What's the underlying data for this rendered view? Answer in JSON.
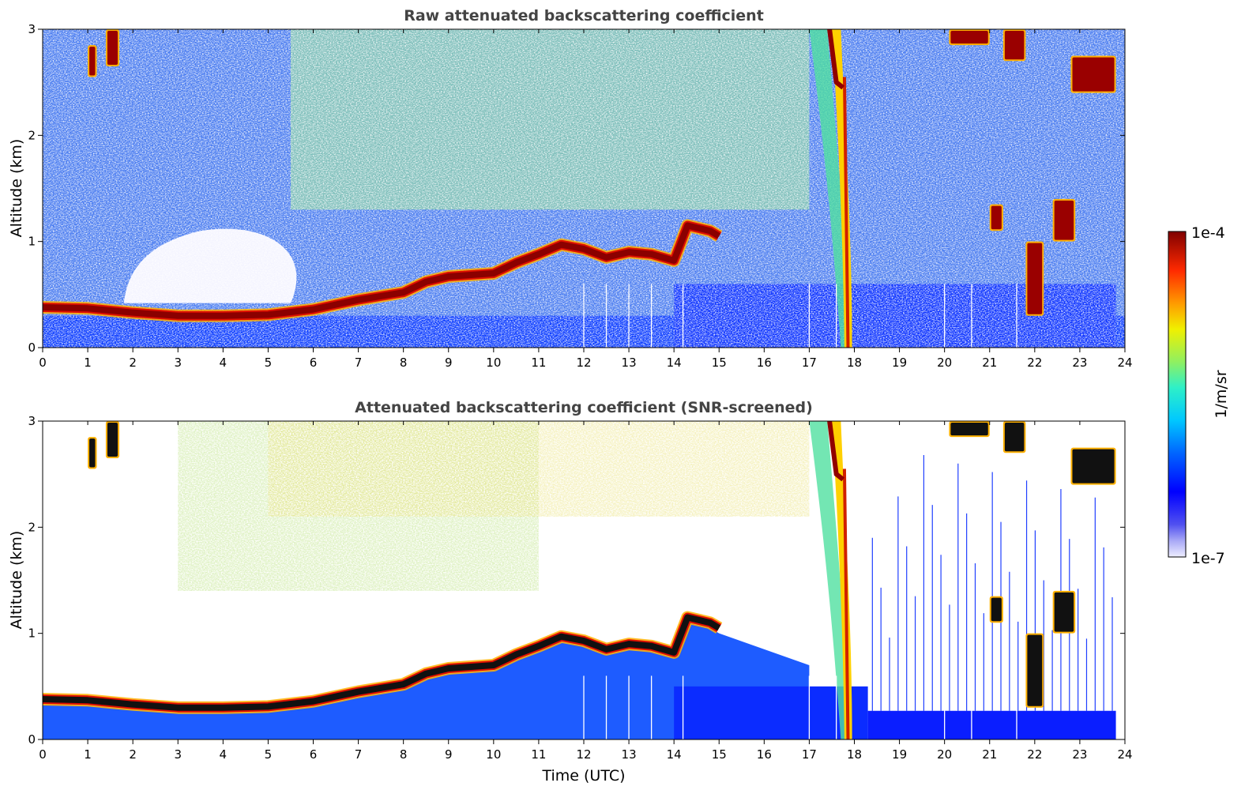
{
  "colorbar": {
    "label": "1/m/sr",
    "max_label": "1e-4",
    "min_label": "1e-7",
    "range": [
      1e-07,
      0.0001
    ],
    "scale": "log",
    "colormap": "jet-like (white/lavender at low end, blue, cyan, green, yellow, orange, red, dark red at high end)"
  },
  "chart_data": [
    {
      "type": "heatmap",
      "title": "Raw attenuated backscattering coefficient",
      "xlabel": "",
      "ylabel": "Altitude (km)",
      "xlim": [
        0,
        24
      ],
      "ylim": [
        0,
        3
      ],
      "xticks": [
        "0",
        "1",
        "2",
        "3",
        "4",
        "5",
        "6",
        "7",
        "8",
        "9",
        "10",
        "11",
        "12",
        "13",
        "14",
        "15",
        "16",
        "17",
        "18",
        "19",
        "20",
        "21",
        "22",
        "23",
        "24"
      ],
      "yticks": [
        "0",
        "1",
        "2",
        "3"
      ],
      "boundary_layer_top_km": [
        [
          0,
          0.38
        ],
        [
          1,
          0.37
        ],
        [
          2,
          0.33
        ],
        [
          3,
          0.3
        ],
        [
          4,
          0.3
        ],
        [
          5,
          0.31
        ],
        [
          6,
          0.36
        ],
        [
          7,
          0.45
        ],
        [
          8,
          0.52
        ],
        [
          8.5,
          0.62
        ],
        [
          9,
          0.67
        ],
        [
          10,
          0.7
        ],
        [
          10.5,
          0.8
        ],
        [
          11,
          0.88
        ],
        [
          11.5,
          0.97
        ],
        [
          12,
          0.93
        ],
        [
          12.5,
          0.85
        ],
        [
          13,
          0.9
        ],
        [
          13.5,
          0.88
        ],
        [
          14,
          0.82
        ],
        [
          14.3,
          1.15
        ],
        [
          14.8,
          1.1
        ],
        [
          15,
          1.05
        ]
      ],
      "cloud_features": [
        {
          "x_start": 17.5,
          "x_end": 18.0,
          "y_bottom": 0.0,
          "y_top": 3.0,
          "note": "precipitation shaft"
        },
        {
          "x_start": 21.8,
          "x_end": 22.2,
          "y_bottom": 0.3,
          "y_top": 1.0
        },
        {
          "x_start": 21.0,
          "x_end": 21.3,
          "y_bottom": 1.1,
          "y_top": 1.35
        },
        {
          "x_start": 22.4,
          "x_end": 22.9,
          "y_bottom": 1.0,
          "y_top": 1.4
        },
        {
          "x_start": 22.8,
          "x_end": 23.8,
          "y_bottom": 2.4,
          "y_top": 2.75
        },
        {
          "x_start": 20.1,
          "x_end": 21.0,
          "y_bottom": 2.85,
          "y_top": 3.0
        },
        {
          "x_start": 21.3,
          "x_end": 21.8,
          "y_bottom": 2.7,
          "y_top": 3.0
        },
        {
          "x_start": 1.0,
          "x_end": 1.2,
          "y_bottom": 2.55,
          "y_top": 2.85
        },
        {
          "x_start": 1.4,
          "x_end": 1.7,
          "y_bottom": 2.65,
          "y_top": 3.0
        }
      ]
    },
    {
      "type": "heatmap",
      "title": "Attenuated backscattering coefficient (SNR-screened)",
      "xlabel": "Time (UTC)",
      "ylabel": "Altitude (km)",
      "xlim": [
        0,
        24
      ],
      "ylim": [
        0,
        3
      ],
      "xticks": [
        "0",
        "1",
        "2",
        "3",
        "4",
        "5",
        "6",
        "7",
        "8",
        "9",
        "10",
        "11",
        "12",
        "13",
        "14",
        "15",
        "16",
        "17",
        "18",
        "19",
        "20",
        "21",
        "22",
        "23",
        "24"
      ],
      "yticks": [
        "0",
        "1",
        "2",
        "3"
      ],
      "boundary_layer_top_km": [
        [
          0,
          0.38
        ],
        [
          1,
          0.37
        ],
        [
          2,
          0.33
        ],
        [
          3,
          0.3
        ],
        [
          4,
          0.3
        ],
        [
          5,
          0.31
        ],
        [
          6,
          0.36
        ],
        [
          7,
          0.45
        ],
        [
          8,
          0.52
        ],
        [
          8.5,
          0.62
        ],
        [
          9,
          0.67
        ],
        [
          10,
          0.7
        ],
        [
          10.5,
          0.8
        ],
        [
          11,
          0.88
        ],
        [
          11.5,
          0.97
        ],
        [
          12,
          0.93
        ],
        [
          12.5,
          0.85
        ],
        [
          13,
          0.9
        ],
        [
          13.5,
          0.88
        ],
        [
          14,
          0.82
        ],
        [
          14.3,
          1.15
        ],
        [
          14.8,
          1.1
        ],
        [
          15,
          1.05
        ]
      ],
      "screened_region": {
        "x_start": 18.3,
        "x_end": 23.8,
        "y_bottom": 0.27,
        "y_top": 3.0
      }
    }
  ]
}
